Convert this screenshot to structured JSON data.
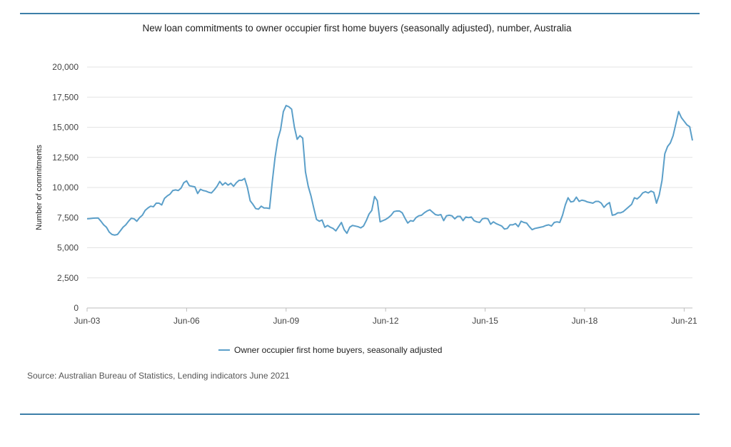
{
  "colors": {
    "accent": "#3d7fa8",
    "series": "#5b9fc9",
    "grid": "#e3e3e3"
  },
  "chart_data": {
    "type": "line",
    "title": "New loan commitments to owner occupier first home buyers (seasonally adjusted), number, Australia",
    "ylabel": "Number of commitments",
    "xlabel": "",
    "ylim": [
      0,
      20000
    ],
    "yticks": [
      "0",
      "2,500",
      "5,000",
      "7,500",
      "10,000",
      "12,500",
      "15,000",
      "17,500",
      "20,000"
    ],
    "xticks": [
      "Jun-03",
      "Jun-06",
      "Jun-09",
      "Jun-12",
      "Jun-15",
      "Jun-18",
      "Jun-21"
    ],
    "grid": "horizontal",
    "legend_position": "bottom",
    "x_start": "Jun-03",
    "x_frequency": "monthly",
    "series": [
      {
        "name": "Owner occupier first home buyers, seasonally adjusted",
        "values": [
          7400,
          7420,
          7450,
          7460,
          7470,
          7200,
          6900,
          6700,
          6300,
          6100,
          6050,
          6100,
          6400,
          6700,
          6900,
          7200,
          7450,
          7400,
          7200,
          7500,
          7700,
          8100,
          8300,
          8450,
          8400,
          8700,
          8700,
          8550,
          9100,
          9300,
          9450,
          9750,
          9800,
          9750,
          9950,
          10400,
          10550,
          10150,
          10100,
          10050,
          9500,
          9850,
          9750,
          9700,
          9600,
          9550,
          9800,
          10100,
          10500,
          10200,
          10400,
          10200,
          10350,
          10100,
          10400,
          10600,
          10600,
          10750,
          10000,
          8900,
          8600,
          8250,
          8200,
          8450,
          8300,
          8300,
          8250,
          10500,
          12500,
          14000,
          14800,
          16300,
          16800,
          16700,
          16500,
          15000,
          14000,
          14300,
          14100,
          11300,
          10100,
          9300,
          8300,
          7350,
          7200,
          7300,
          6700,
          6850,
          6700,
          6600,
          6400,
          6750,
          7100,
          6500,
          6200,
          6700,
          6850,
          6800,
          6750,
          6650,
          6800,
          7250,
          7800,
          8100,
          9250,
          8900,
          7150,
          7250,
          7350,
          7500,
          7700,
          8000,
          8050,
          8050,
          7900,
          7450,
          7050,
          7250,
          7200,
          7500,
          7650,
          7700,
          7900,
          8050,
          8150,
          7950,
          7750,
          7700,
          7750,
          7250,
          7650,
          7700,
          7650,
          7400,
          7600,
          7600,
          7250,
          7550,
          7500,
          7550,
          7250,
          7150,
          7100,
          7400,
          7450,
          7400,
          6950,
          7150,
          7000,
          6900,
          6800,
          6550,
          6600,
          6900,
          6900,
          7000,
          6750,
          7200,
          7100,
          7050,
          6750,
          6500,
          6600,
          6650,
          6700,
          6750,
          6850,
          6900,
          6800,
          7100,
          7150,
          7100,
          7700,
          8550,
          9150,
          8800,
          8850,
          9200,
          8850,
          8950,
          8900,
          8800,
          8750,
          8700,
          8850,
          8850,
          8700,
          8350,
          8600,
          8750,
          7700,
          7750,
          7900,
          7900,
          8000,
          8200,
          8400,
          8600,
          9150,
          9050,
          9250,
          9550,
          9650,
          9550,
          9700,
          9600,
          8700,
          9400,
          10600,
          12800,
          13400,
          13700,
          14300,
          15300,
          16300,
          15800,
          15500,
          15200,
          15050,
          13900
        ]
      }
    ],
    "source": "Source: Australian Bureau of Statistics, Lending indicators June 2021"
  }
}
